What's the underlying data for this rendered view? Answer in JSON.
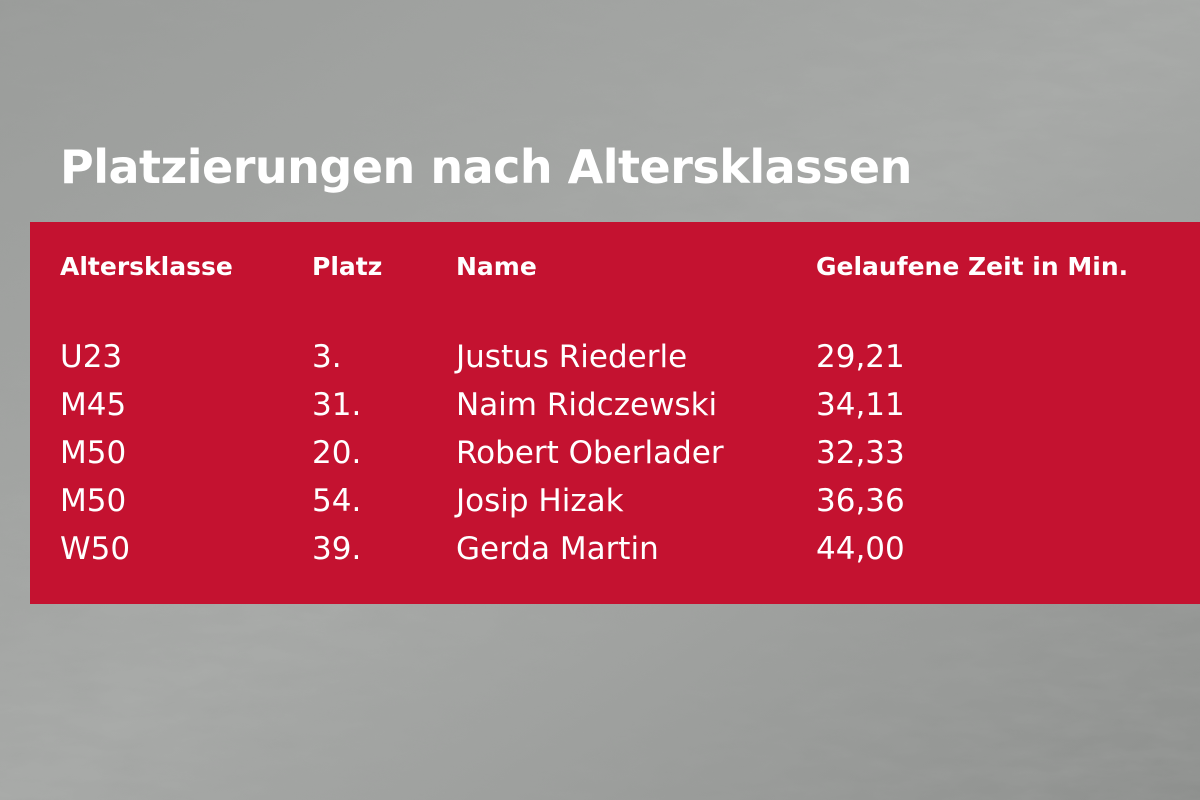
{
  "title": "Platzierungen nach Altersklassen",
  "table": {
    "headers": [
      "Altersklasse",
      "Platz",
      "Name",
      "Gelaufene Zeit in Min."
    ],
    "rows": [
      [
        "U23",
        "3.",
        "Justus Riederle",
        "29,21"
      ],
      [
        "M45",
        "31.",
        "Naim Ridczewski",
        "34,11"
      ],
      [
        "M50",
        "20.",
        "Robert Oberlader",
        "32,33"
      ],
      [
        "M50",
        "54.",
        "Josip Hizak",
        "36,36"
      ],
      [
        "W50",
        "39.",
        "Gerda Martin",
        "44,00"
      ]
    ]
  }
}
